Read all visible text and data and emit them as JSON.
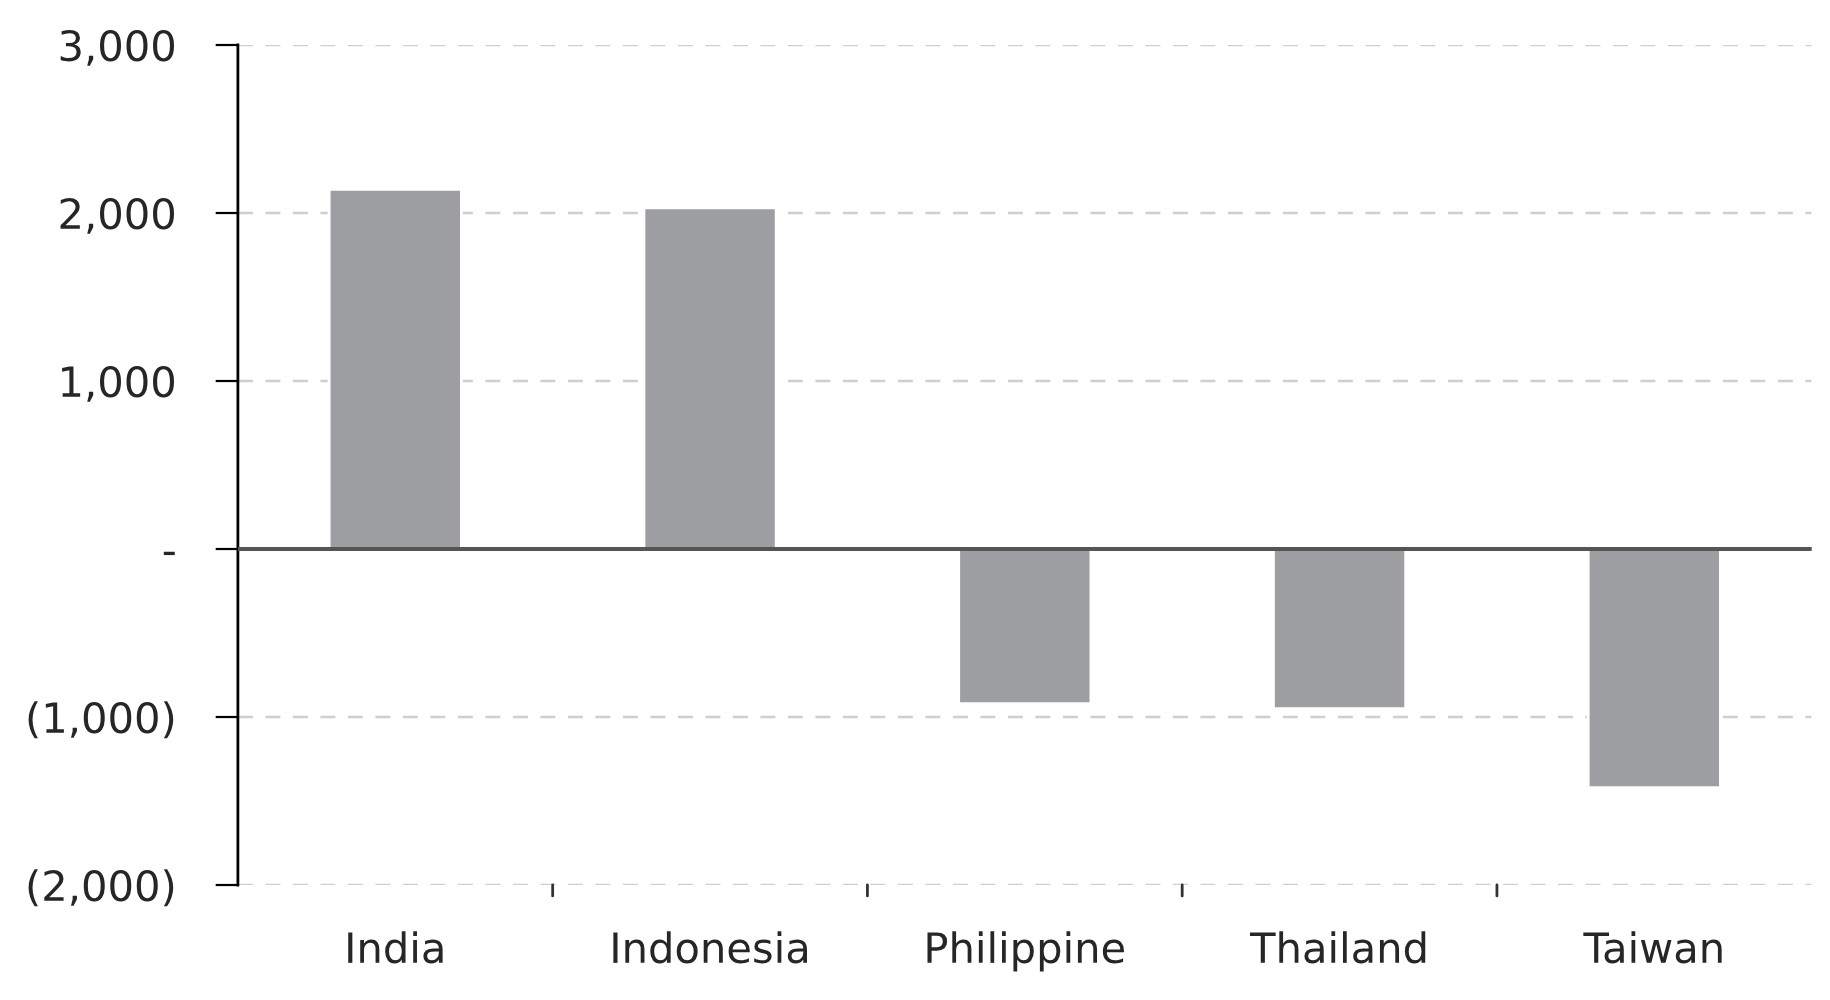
{
  "chart_data": {
    "type": "bar",
    "categories": [
      "India",
      "Indonesia",
      "Philippine",
      "Thailand",
      "Taiwan"
    ],
    "values": [
      2140,
      2030,
      -920,
      -950,
      -1420
    ],
    "color": "#9d9ea2",
    "ylim": [
      -2000,
      3000
    ],
    "yticks": [
      {
        "value": -2000,
        "label": "(2,000)"
      },
      {
        "value": -1000,
        "label": "(1,000)"
      },
      {
        "value": 0,
        "label": "-"
      },
      {
        "value": 1000,
        "label": "1,000"
      },
      {
        "value": 2000,
        "label": "2,000"
      },
      {
        "value": 3000,
        "label": "3,000"
      }
    ],
    "grid": "y"
  }
}
